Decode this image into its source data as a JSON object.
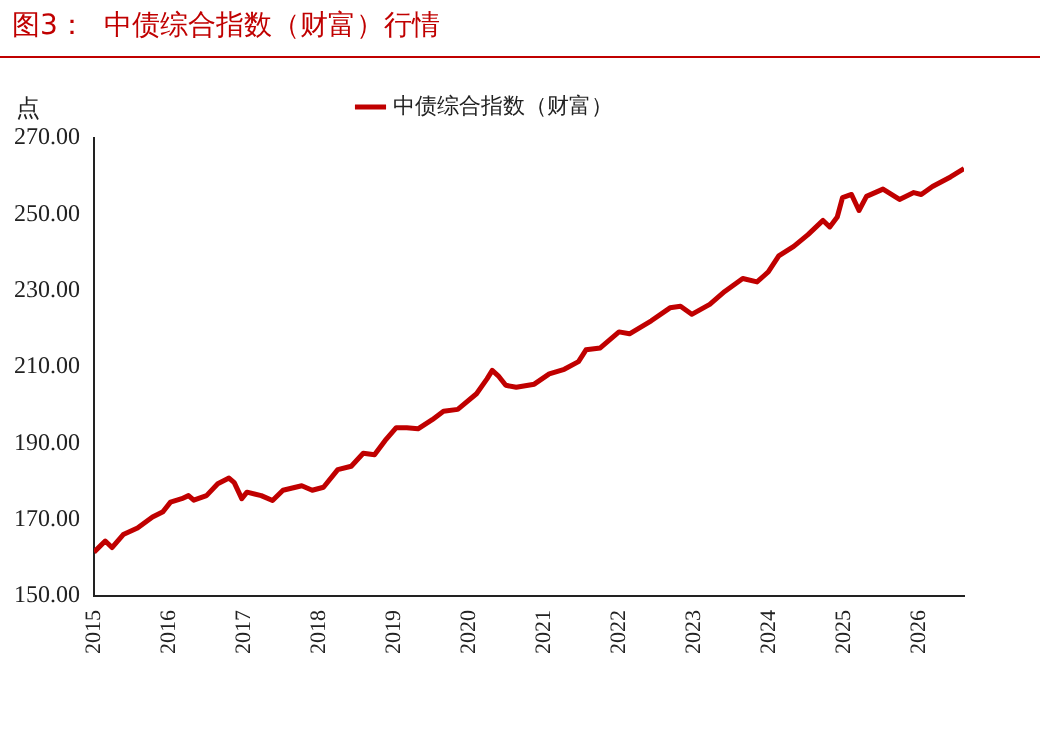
{
  "chart_data": {
    "type": "line",
    "title": "图3：  中债综合指数（财富）行情",
    "ylabel": "点",
    "x": [
      2015.0,
      2015.15,
      2015.24,
      2015.39,
      2015.58,
      2015.78,
      2015.92,
      2016.02,
      2016.17,
      2016.26,
      2016.33,
      2016.5,
      2016.65,
      2016.8,
      2016.87,
      2016.97,
      2017.04,
      2017.23,
      2017.38,
      2017.52,
      2017.77,
      2017.91,
      2018.06,
      2018.25,
      2018.43,
      2018.59,
      2018.74,
      2018.88,
      2019.03,
      2019.17,
      2019.32,
      2019.51,
      2019.66,
      2019.85,
      2020.1,
      2020.24,
      2020.31,
      2020.39,
      2020.49,
      2020.63,
      2020.87,
      2021.07,
      2021.27,
      2021.46,
      2021.56,
      2021.75,
      2022.0,
      2022.14,
      2022.43,
      2022.68,
      2022.82,
      2022.97,
      2023.21,
      2023.41,
      2023.65,
      2023.84,
      2023.99,
      2024.13,
      2024.33,
      2024.52,
      2024.72,
      2024.81,
      2024.91,
      2024.98,
      2025.1,
      2025.2,
      2025.3,
      2025.52,
      2025.74,
      2025.93,
      2026.03,
      2026.18,
      2026.42,
      2026.6
    ],
    "series": [
      {
        "name": "中债综合指数（财富）",
        "color": "#c00000",
        "values": [
          161.5,
          164.4,
          162.7,
          166.1,
          167.8,
          170.7,
          172.1,
          174.6,
          175.5,
          176.3,
          175.1,
          176.3,
          179.4,
          180.9,
          179.7,
          175.5,
          177.2,
          176.3,
          175.0,
          177.7,
          178.9,
          177.7,
          178.5,
          183.1,
          184.0,
          187.4,
          187.0,
          190.7,
          194.1,
          194.1,
          193.8,
          196.2,
          198.4,
          198.9,
          203.0,
          206.9,
          209.1,
          207.7,
          205.2,
          204.7,
          205.5,
          208.2,
          209.4,
          211.4,
          214.5,
          215.0,
          219.2,
          218.7,
          222.1,
          225.5,
          225.9,
          223.8,
          226.4,
          229.8,
          233.2,
          232.3,
          234.9,
          239.1,
          241.6,
          244.7,
          248.4,
          246.7,
          249.3,
          254.4,
          255.2,
          251.0,
          254.7,
          256.6,
          253.9,
          255.7,
          255.2,
          257.3,
          259.8,
          262.0
        ]
      }
    ],
    "xlim": [
      2015,
      2026.6
    ],
    "xticks": [
      2015,
      2016,
      2017,
      2018,
      2019,
      2020,
      2021,
      2022,
      2023,
      2024,
      2025,
      2026
    ],
    "ylim": [
      150,
      270
    ],
    "yticks": [
      {
        "value": 150,
        "label": "150.00"
      },
      {
        "value": 170,
        "label": "170.00"
      },
      {
        "value": 190,
        "label": "190.00"
      },
      {
        "value": 210,
        "label": "210.00"
      },
      {
        "value": 230,
        "label": "230.00"
      },
      {
        "value": 250,
        "label": "250.00"
      },
      {
        "value": 270,
        "label": "270.00"
      }
    ],
    "legend": "top",
    "grid": false,
    "marker": "none",
    "line_style": "solid"
  }
}
